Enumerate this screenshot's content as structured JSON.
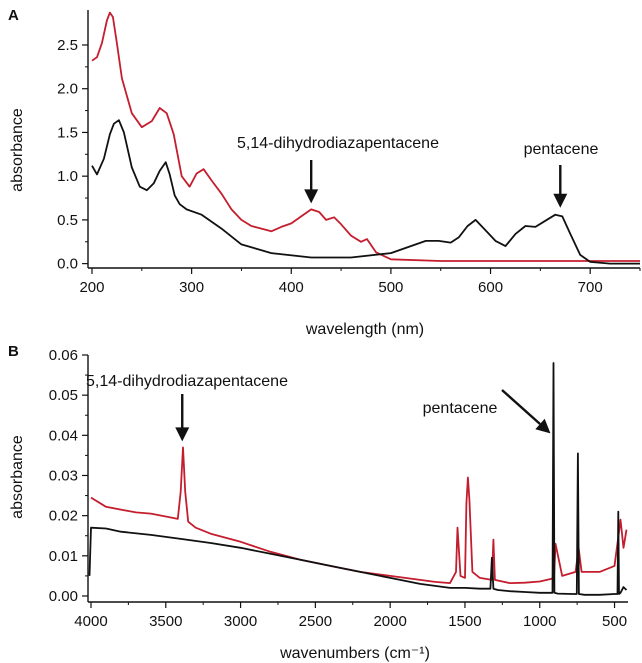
{
  "chart_data": [
    {
      "type": "line",
      "panel_label": "A",
      "xlabel": "wavelength (nm)",
      "ylabel": "absorbance",
      "xlim": [
        196,
        750
      ],
      "ylim": [
        -0.05,
        2.9
      ],
      "xticks": [
        200,
        300,
        400,
        500,
        600,
        700
      ],
      "yticks": [
        0.0,
        0.5,
        1.0,
        1.5,
        2.0,
        2.5
      ],
      "ytick_labels": [
        "0.0",
        "0.5",
        "1.0",
        "1.5",
        "2.0",
        "2.5"
      ],
      "grid": false,
      "series": [
        {
          "color": "#c41e2e",
          "x": [
            200,
            205,
            210,
            215,
            218,
            221,
            225,
            230,
            240,
            250,
            260,
            268,
            275,
            282,
            290,
            298,
            305,
            312,
            320,
            330,
            340,
            350,
            360,
            370,
            380,
            390,
            400,
            410,
            420,
            428,
            435,
            443,
            450,
            460,
            470,
            476,
            485,
            500,
            550,
            600,
            650,
            700,
            750
          ],
          "y": [
            2.32,
            2.36,
            2.52,
            2.78,
            2.87,
            2.82,
            2.52,
            2.12,
            1.72,
            1.56,
            1.63,
            1.78,
            1.72,
            1.48,
            1.0,
            0.88,
            1.03,
            1.08,
            0.95,
            0.8,
            0.62,
            0.5,
            0.43,
            0.4,
            0.37,
            0.42,
            0.46,
            0.54,
            0.62,
            0.59,
            0.5,
            0.53,
            0.45,
            0.32,
            0.25,
            0.28,
            0.13,
            0.05,
            0.03,
            0.03,
            0.03,
            0.03,
            0.03
          ]
        },
        {
          "color": "#111111",
          "x": [
            200,
            205,
            212,
            218,
            222,
            227,
            232,
            240,
            248,
            255,
            262,
            268,
            274,
            278,
            283,
            288,
            295,
            310,
            330,
            350,
            380,
            420,
            460,
            500,
            520,
            535,
            548,
            560,
            568,
            577,
            585,
            595,
            605,
            615,
            625,
            635,
            645,
            655,
            665,
            672,
            680,
            690,
            700,
            720,
            750
          ],
          "y": [
            1.12,
            1.02,
            1.2,
            1.48,
            1.6,
            1.64,
            1.5,
            1.1,
            0.88,
            0.84,
            0.92,
            1.06,
            1.16,
            1.02,
            0.78,
            0.68,
            0.62,
            0.56,
            0.4,
            0.22,
            0.12,
            0.07,
            0.07,
            0.12,
            0.2,
            0.26,
            0.26,
            0.24,
            0.3,
            0.43,
            0.5,
            0.38,
            0.26,
            0.2,
            0.34,
            0.43,
            0.42,
            0.49,
            0.56,
            0.54,
            0.34,
            0.1,
            0.02,
            0.0,
            0.0
          ]
        }
      ],
      "annotations": [
        {
          "text": "5,14-dihydrodiazapentacene",
          "x": 420,
          "y": 0.62
        },
        {
          "text": "pentacene",
          "x": 670,
          "y": 0.57
        }
      ]
    },
    {
      "type": "line",
      "panel_label": "B",
      "xlabel": "wavenumbers (cm⁻¹)",
      "ylabel": "absorbance",
      "xlim": [
        4020,
        410
      ],
      "ylim": [
        -0.0015,
        0.06
      ],
      "x_reversed": true,
      "xticks": [
        4000,
        3500,
        3000,
        2500,
        2000,
        1500,
        1000,
        500
      ],
      "yticks": [
        0.0,
        0.01,
        0.02,
        0.03,
        0.04,
        0.05,
        0.06
      ],
      "ytick_labels": [
        "0.00",
        "0.01",
        "0.02",
        "0.03",
        "0.04",
        "0.05",
        "0.06"
      ],
      "grid": false,
      "series": [
        {
          "color": "#c41e2e",
          "x": [
            4000,
            3900,
            3800,
            3700,
            3600,
            3500,
            3420,
            3400,
            3385,
            3370,
            3350,
            3300,
            3200,
            3000,
            2800,
            2600,
            2400,
            2200,
            2000,
            1800,
            1700,
            1600,
            1560,
            1550,
            1530,
            1500,
            1490,
            1480,
            1470,
            1450,
            1400,
            1320,
            1310,
            1300,
            1200,
            1100,
            1000,
            930,
            905,
            895,
            850,
            760,
            740,
            720,
            600,
            500,
            470,
            460,
            440,
            420
          ],
          "y": [
            0.0245,
            0.0222,
            0.0215,
            0.0208,
            0.0205,
            0.0198,
            0.0192,
            0.026,
            0.037,
            0.026,
            0.0185,
            0.017,
            0.0155,
            0.0135,
            0.011,
            0.009,
            0.0075,
            0.006,
            0.005,
            0.004,
            0.0035,
            0.0032,
            0.006,
            0.017,
            0.005,
            0.0045,
            0.023,
            0.0295,
            0.024,
            0.006,
            0.0045,
            0.004,
            0.014,
            0.004,
            0.0032,
            0.0033,
            0.0036,
            0.0042,
            0.0045,
            0.013,
            0.005,
            0.006,
            0.012,
            0.006,
            0.006,
            0.0075,
            0.016,
            0.019,
            0.012,
            0.0165
          ]
        },
        {
          "color": "#111111",
          "x": [
            4010,
            4000,
            3900,
            3800,
            3600,
            3400,
            3200,
            3000,
            2800,
            2600,
            2400,
            2200,
            2000,
            1800,
            1600,
            1500,
            1400,
            1330,
            1320,
            1310,
            1280,
            1200,
            1100,
            1000,
            915,
            908,
            902,
            880,
            780,
            752,
            745,
            738,
            700,
            600,
            500,
            480,
            475,
            470,
            460,
            440,
            420
          ],
          "y": [
            0.005,
            0.017,
            0.0168,
            0.016,
            0.0152,
            0.0142,
            0.0132,
            0.012,
            0.0105,
            0.009,
            0.0075,
            0.006,
            0.0045,
            0.003,
            0.002,
            0.002,
            0.0018,
            0.0018,
            0.0095,
            0.0018,
            0.0015,
            0.0012,
            0.001,
            0.0008,
            0.0008,
            0.058,
            0.0008,
            0.0006,
            0.0005,
            0.0005,
            0.0355,
            0.0005,
            0.0003,
            0.0003,
            0.0005,
            0.0005,
            0.021,
            0.0005,
            0.0008,
            0.0022,
            0.0015
          ]
        }
      ],
      "annotations": [
        {
          "text": "5,14-dihydrodiazapentacene",
          "x": 3390,
          "y": 0.0375
        },
        {
          "text": "pentacene",
          "x": 915,
          "y": 0.0405
        }
      ]
    }
  ]
}
